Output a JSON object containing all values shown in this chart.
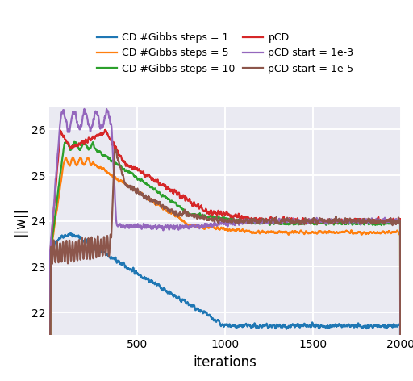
{
  "title": "",
  "xlabel": "iterations",
  "ylabel": "||w||",
  "xlim": [
    0,
    2000
  ],
  "ylim": [
    21.5,
    26.5
  ],
  "yticks": [
    22,
    23,
    24,
    25,
    26
  ],
  "xticks": [
    500,
    1000,
    1500,
    2000
  ],
  "legend_labels": [
    "CD #Gibbs steps = 1",
    "CD #Gibbs steps = 5",
    "CD #Gibbs steps = 10",
    "pCD",
    "pCD start = 1e-3",
    "pCD start = 1e-5"
  ],
  "legend_colors": [
    "#1f77b4",
    "#ff7f0e",
    "#2ca02c",
    "#d62728",
    "#9467bd",
    "#8c564b"
  ],
  "background_color": "#eaeaf2",
  "grid_color": "#ffffff",
  "seed": 42
}
